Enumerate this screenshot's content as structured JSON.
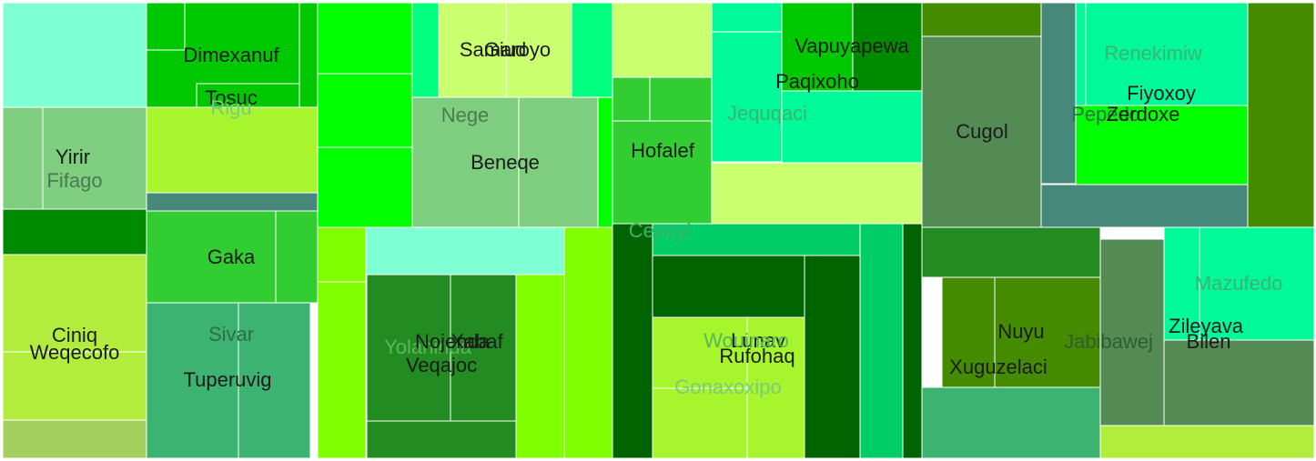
{
  "chart_data": {
    "type": "treemap",
    "title": "",
    "total_area_units": 729048,
    "groups": [
      {
        "rect_order": 0,
        "cells": [
          {
            "label": "",
            "value": 18130,
            "color": "#7fffd4",
            "label_color": "#1b1b1b"
          },
          {
            "label": "Dimexanuf",
            "value": 6318,
            "color": "#00c800",
            "label_color": "#1b1b1b"
          },
          {
            "label": "Tosuc",
            "value": 4526,
            "color": "#00c800",
            "label_color": "#1b1b1b"
          },
          {
            "label": "",
            "value": 3718,
            "color": "#00c800",
            "label_color": "#1b1b1b"
          },
          {
            "label": "",
            "value": 2184,
            "color": "#00c800",
            "label_color": "#1b1b1b"
          },
          {
            "label": "Rigu",
            "value": 17390,
            "color": "#a6f52d",
            "label_color": "#7fc97f"
          },
          {
            "label": "",
            "value": 3120,
            "color": "#46887a",
            "label_color": "#1b1b1b"
          },
          {
            "label": "Yirir",
            "value": 4368,
            "color": "#7fcd7f",
            "label_color": "#1b1b1b"
          },
          {
            "label": "Fifago",
            "value": 12012,
            "color": "#7fcd7f",
            "label_color": "#4a7a52"
          },
          {
            "label": "",
            "value": 7900,
            "color": "#008a00",
            "label_color": "#1b1b1b"
          },
          {
            "label": "Gaka",
            "value": 14141,
            "color": "#32cd32",
            "label_color": "#1b1b1b"
          },
          {
            "label": "",
            "value": 4500,
            "color": "#32cd32",
            "label_color": "#1b1b1b"
          },
          {
            "label": "Sivar",
            "value": 16200,
            "color": "#3cb371",
            "label_color": "#2e6e4a"
          },
          {
            "label": "Tuperuvig",
            "value": 14800,
            "color": "#3cb371",
            "label_color": "#1b1b1b"
          },
          {
            "label": "Ciniq",
            "value": 16800,
            "color": "#b2ec3c",
            "label_color": "#1b1b1b"
          },
          {
            "label": "Weqecofo",
            "value": 11800,
            "color": "#b2ec3c",
            "label_color": "#1b1b1b"
          },
          {
            "label": "",
            "value": 6700,
            "color": "#a3cf5f",
            "label_color": "#1b1b1b"
          }
        ]
      },
      {
        "rect_order": 1,
        "cells": [
          {
            "label": "",
            "value": 7800,
            "color": "#00ff00",
            "label_color": "#1b1b1b"
          },
          {
            "label": "",
            "value": 8500,
            "color": "#00ff00",
            "label_color": "#1b1b1b"
          },
          {
            "label": "",
            "value": 8800,
            "color": "#00ff00",
            "label_color": "#1b1b1b"
          },
          {
            "label": "",
            "value": 3000,
            "color": "#00ff7f",
            "label_color": "#1b1b1b"
          },
          {
            "label": "Samaroyo",
            "value": 7800,
            "color": "#caff70",
            "label_color": "#1b1b1b"
          },
          {
            "label": "Giud",
            "value": 7400,
            "color": "#caff70",
            "label_color": "#1b1b1b"
          },
          {
            "label": "",
            "value": 4600,
            "color": "#00ff7f",
            "label_color": "#1b1b1b"
          },
          {
            "label": "Nege",
            "value": 12000,
            "color": "#7fcd7f",
            "label_color": "#4a7a52"
          },
          {
            "label": "Beneqe",
            "value": 12500,
            "color": "#7fcd7f",
            "label_color": "#1b1b1b"
          },
          {
            "label": "",
            "value": 2400,
            "color": "#00ff00",
            "label_color": "#1b1b1b"
          },
          {
            "label": "",
            "value": 3000,
            "color": "#7fff00",
            "label_color": "#1b1b1b"
          },
          {
            "label": "",
            "value": 10800,
            "color": "#7fff00",
            "label_color": "#1b1b1b"
          },
          {
            "label": "",
            "value": 11000,
            "color": "#7fffd4",
            "label_color": "#1b1b1b"
          },
          {
            "label": "Yolanirida",
            "value": 8000,
            "color": "#7fff00",
            "label_color": "#58b858"
          },
          {
            "label": "Nojenda",
            "value": 13500,
            "color": "#228b22",
            "label_color": "#1b1b1b"
          },
          {
            "label": "Xabaf",
            "value": 11300,
            "color": "#228b22",
            "label_color": "#1b1b1b"
          },
          {
            "label": "Veqajoc",
            "value": 8200,
            "color": "#228b22",
            "label_color": "#1b1b1b"
          },
          {
            "label": "",
            "value": 7600,
            "color": "#7fff00",
            "label_color": "#1b1b1b"
          },
          {
            "label": "",
            "value": 10500,
            "color": "#7fff00",
            "label_color": "#1b1b1b"
          }
        ]
      },
      {
        "rect_order": 2,
        "cells": [
          {
            "label": "",
            "value": 8600,
            "color": "#caff70",
            "label_color": "#1b1b1b"
          },
          {
            "label": "",
            "value": 1900,
            "color": "#32cd32",
            "label_color": "#1b1b1b"
          },
          {
            "label": "",
            "value": 3300,
            "color": "#32cd32",
            "label_color": "#1b1b1b"
          },
          {
            "label": "Hofalef",
            "value": 12500,
            "color": "#32cd32",
            "label_color": "#1b1b1b"
          },
          {
            "label": "",
            "value": 2400,
            "color": "#00fa9a",
            "label_color": "#1b1b1b"
          },
          {
            "label": "Jequqaci",
            "value": 12000,
            "color": "#00fa9a",
            "label_color": "#3cb371"
          },
          {
            "label": "Vapuyapewa",
            "value": 6700,
            "color": "#008a00",
            "label_color": "#1b1b1b"
          },
          {
            "label": "Paqixoho",
            "value": 4400,
            "color": "#00c800",
            "label_color": "#1b1b1b"
          },
          {
            "label": "",
            "value": 8400,
            "color": "#00fa9a",
            "label_color": "#1b1b1b"
          },
          {
            "label": "",
            "value": 15800,
            "color": "#caff70",
            "label_color": "#1b1b1b"
          },
          {
            "label": "Cepoyi",
            "value": 8400,
            "color": "#00cd66",
            "label_color": "#3cb371"
          },
          {
            "label": "",
            "value": 11500,
            "color": "#006400",
            "label_color": "#1b1b1b"
          },
          {
            "label": "Rufohaq",
            "value": 9000,
            "color": "#006400",
            "label_color": "#1b1b1b"
          },
          {
            "label": "Lunav",
            "value": 18000,
            "color": "#a6f52d",
            "label_color": "#1b1b1b"
          },
          {
            "label": "Wouinaro",
            "value": 7800,
            "color": "#a6f52d",
            "label_color": "#58b858"
          },
          {
            "label": "Gonaxoxipo",
            "value": 5400,
            "color": "#a6f52d",
            "label_color": "#7fc97f"
          },
          {
            "label": "",
            "value": 11000,
            "color": "#006400",
            "label_color": "#1b1b1b"
          },
          {
            "label": "",
            "value": 11000,
            "color": "#00cd66",
            "label_color": "#1b1b1b"
          },
          {
            "label": "",
            "value": 5200,
            "color": "#006400",
            "label_color": "#1b1b1b"
          }
        ]
      },
      {
        "rect_order": 3,
        "cells": [
          {
            "label": "",
            "value": 4800,
            "color": "#458b00",
            "label_color": "#1b1b1b"
          },
          {
            "label": "Cugol",
            "value": 22000,
            "color": "#548b54",
            "label_color": "#1b1b1b"
          },
          {
            "label": "",
            "value": 3500,
            "color": "#46887a",
            "label_color": "#1b1b1b"
          },
          {
            "label": "Renekimiw",
            "value": 10500,
            "color": "#00fa9a",
            "label_color": "#3cb371"
          },
          {
            "label": "Fiyoxoy",
            "value": 8400,
            "color": "#00fa9a",
            "label_color": "#1b1b1b"
          },
          {
            "label": "Pepedo",
            "value": 7200,
            "color": "#00ff00",
            "label_color": "#2e6e4a"
          },
          {
            "label": "Zerdoxe",
            "value": 9000,
            "color": "#00ff00",
            "label_color": "#1b1b1b"
          },
          {
            "label": "",
            "value": 10000,
            "color": "#46887a",
            "label_color": "#1b1b1b"
          },
          {
            "label": "",
            "value": 18000,
            "color": "#458b00",
            "label_color": "#1b1b1b"
          },
          {
            "label": "",
            "value": 10000,
            "color": "#228b22",
            "label_color": "#1b1b1b"
          },
          {
            "label": "Nuyu",
            "value": 9000,
            "color": "#458b00",
            "label_color": "#1b1b1b"
          },
          {
            "label": "Xuguzelaci",
            "value": 9500,
            "color": "#458b00",
            "label_color": "#1b1b1b"
          },
          {
            "label": "",
            "value": 15000,
            "color": "#3cb371",
            "label_color": "#1b1b1b"
          },
          {
            "label": "Jabibawej",
            "value": 14000,
            "color": "#548b54",
            "label_color": "#2e5e2e"
          },
          {
            "label": "Mazufedo",
            "value": 10000,
            "color": "#00fa9a",
            "label_color": "#3cb371"
          },
          {
            "label": "Zileyava",
            "value": 8000,
            "color": "#00fa9a",
            "label_color": "#1b1b1b"
          },
          {
            "label": "Bilen",
            "value": 15000,
            "color": "#548b54",
            "label_color": "#1b1b1b"
          },
          {
            "label": "",
            "value": 8000,
            "color": "#b2ec3c",
            "label_color": "#1b1b1b"
          }
        ]
      }
    ]
  }
}
